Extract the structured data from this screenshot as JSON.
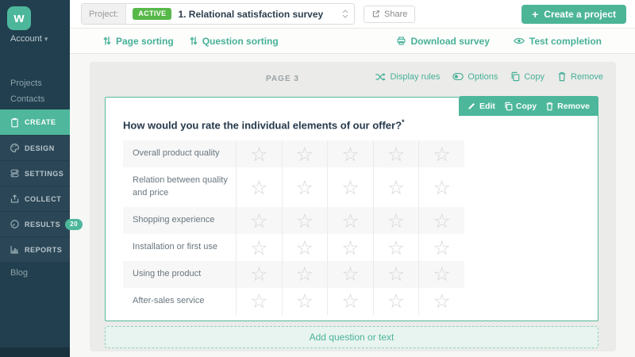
{
  "brand": {
    "logo_letter": "w"
  },
  "sidebar": {
    "account_label": "Account",
    "top_items": [
      {
        "label": "Projects"
      },
      {
        "label": "Contacts"
      }
    ],
    "menu_items": [
      {
        "label": "CREATE",
        "icon": "clipboard-icon",
        "active": true
      },
      {
        "label": "DESIGN",
        "icon": "palette-icon",
        "active": false
      },
      {
        "label": "SETTINGS",
        "icon": "toggles-icon",
        "active": false
      },
      {
        "label": "COLLECT",
        "icon": "upload-icon",
        "active": false
      },
      {
        "label": "RESULTS",
        "icon": "gauge-icon",
        "active": false,
        "badge": "20"
      },
      {
        "label": "REPORTS",
        "icon": "bar-chart-icon",
        "active": false
      }
    ],
    "bottom_items": [
      {
        "label": "Blog"
      }
    ]
  },
  "topbar": {
    "project_label": "Project:",
    "status_badge": "ACTIVE",
    "project_title": "1. Relational satisfaction survey",
    "share_label": "Share",
    "create_button_label": "Create a project",
    "plus_glyph": "+"
  },
  "toolbar": {
    "page_sorting": "Page sorting",
    "question_sorting": "Question sorting",
    "download_survey": "Download survey",
    "test_completion": "Test completion"
  },
  "page": {
    "title": "PAGE 3",
    "actions": {
      "display_rules": "Display rules",
      "options": "Options",
      "copy": "Copy",
      "remove": "Remove"
    }
  },
  "question": {
    "actions": {
      "edit": "Edit",
      "copy": "Copy",
      "remove": "Remove"
    },
    "title": "How would you rate the individual elements of our offer?",
    "required_marker": "*",
    "rating_scale": 5,
    "star_glyph": "☆",
    "rows": [
      "Overall product quality",
      "Relation between quality and price",
      "Shopping experience",
      "Installation or first use",
      "Using the product",
      "After-sales service"
    ]
  },
  "footer": {
    "add_button_label": "Add question or text"
  },
  "colors": {
    "accent_teal": "#4cb596",
    "active_badge_green": "#57b84a",
    "sidebar_dark": "#213f4e",
    "sidebar_menu": "#2b4757",
    "panel_grey": "#ebebe9",
    "card_border": "#55b89c",
    "star_grey": "#d5d5d5"
  }
}
